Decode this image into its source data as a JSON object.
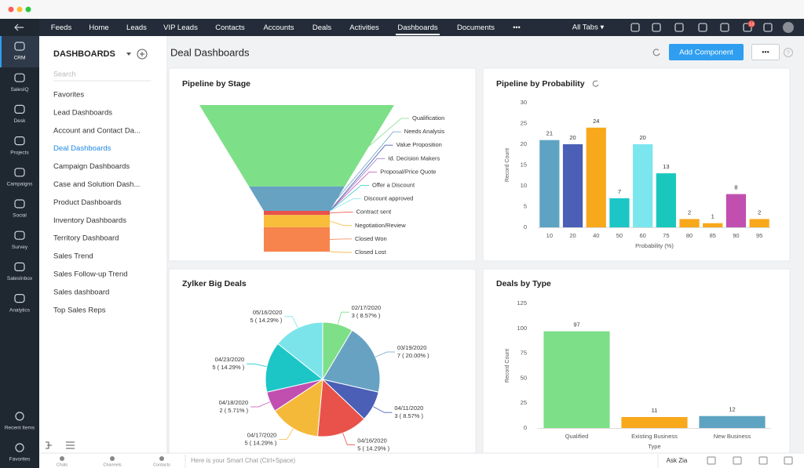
{
  "sidebar": {
    "items": [
      "CRM",
      "SalesIQ",
      "Desk",
      "Projects",
      "Campaigns",
      "Social",
      "Survey",
      "SalesInbox",
      "Analytics"
    ],
    "bottom_items": [
      "Recent Items",
      "Favorites"
    ]
  },
  "top_nav": {
    "tabs": [
      "Feeds",
      "Home",
      "Leads",
      "VIP Leads",
      "Contacts",
      "Accounts",
      "Deals",
      "Activities",
      "Dashboards",
      "Documents"
    ],
    "more": "•••",
    "all_tabs": "All Tabs ▾",
    "notification_count": 13
  },
  "panel": {
    "title": "DASHBOARDS",
    "search_placeholder": "Search",
    "items": [
      "Favorites",
      "Lead Dashboards",
      "Account and Contact Da...",
      "Deal Dashboards",
      "Campaign Dashboards",
      "Case and Solution Dash...",
      "Product Dashboards",
      "Inventory Dashboards",
      "Territory Dashboard",
      "Sales Trend",
      "Sales Follow-up Trend",
      "Sales dashboard",
      "Top Sales Reps"
    ]
  },
  "header": {
    "title": "Deal Dashboards",
    "add_button": "Add Component",
    "more_button": "•••",
    "help": "?"
  },
  "chart_data": [
    {
      "type": "funnel",
      "title": "Pipeline by Stage",
      "categories": [
        "Qualification",
        "Needs Analysis",
        "Value Proposition",
        "Id. Decision Makers",
        "Proposal/Price Quote",
        "Offer a Discount",
        "Discount approved",
        "Contract sent",
        "Negotiation/Review",
        "Closed Won",
        "Closed Lost"
      ],
      "values": [
        20,
        6,
        0,
        0,
        0,
        0,
        0,
        1,
        3,
        6,
        0
      ],
      "colors": [
        "#7ddf87",
        "#67a2c3",
        "#4a5fb5",
        "#9e7fd0",
        "#c04fb0",
        "#2bc7c4",
        "#7be4ea",
        "#e8524a",
        "#f7bd3b",
        "#f7834d",
        "#f5a623"
      ]
    },
    {
      "type": "bar",
      "title": "Pipeline by Probability",
      "categories": [
        "10",
        "20",
        "40",
        "50",
        "60",
        "75",
        "80",
        "85",
        "90",
        "95"
      ],
      "values": [
        21,
        20,
        24,
        7,
        20,
        13,
        2,
        1,
        8,
        2
      ],
      "colors": [
        "#5fa3c2",
        "#4a5fb5",
        "#f8a81b",
        "#1cc6c6",
        "#7be6ee",
        "#19c7bd",
        "#f8a81b",
        "#f8a81b",
        "#c04fb0",
        "#f8a81b"
      ],
      "ylim": [
        0,
        30
      ],
      "yticks": [
        0,
        5,
        10,
        15,
        20,
        25,
        30
      ],
      "xlabel": "Probability (%)",
      "ylabel": "Record Count"
    },
    {
      "type": "pie",
      "title": "Zylker Big Deals",
      "categories": [
        "02/17/2020",
        "03/19/2020",
        "04/11/2020",
        "04/16/2020",
        "04/17/2020",
        "04/18/2020",
        "04/23/2020",
        "05/16/2020"
      ],
      "values": [
        3,
        7,
        3,
        5,
        5,
        2,
        5,
        5
      ],
      "value_labels": [
        "3 ( 8.57% )",
        "7 ( 20.00% )",
        "3 ( 8.57% )",
        "5 ( 14.29% )",
        "5 ( 14.29% )",
        "2 ( 5.71% )",
        "5 ( 14.29% )",
        "5 ( 14.29% )"
      ],
      "colors": [
        "#7ddf87",
        "#67a2c3",
        "#4a5fb5",
        "#e8524a",
        "#f5b93a",
        "#c04fb0",
        "#1cc6c6",
        "#7be4ea"
      ]
    },
    {
      "type": "bar",
      "title": "Deals by Type",
      "categories": [
        "Qualified",
        "Existing Business",
        "New Business"
      ],
      "values": [
        97,
        11,
        12
      ],
      "colors": [
        "#7ddf87",
        "#f8a81b",
        "#5fa3c2"
      ],
      "ylim": [
        0,
        125
      ],
      "yticks": [
        0,
        25,
        50,
        75,
        100,
        125
      ],
      "xlabel": "Type",
      "ylabel": "Record Count"
    }
  ],
  "bottom_bar": {
    "items": [
      "Chats",
      "Channels",
      "Contacts"
    ],
    "smart_chat": "Here is your Smart Chat (Ctrl+Space)",
    "ask_zia": "Ask Zia"
  }
}
